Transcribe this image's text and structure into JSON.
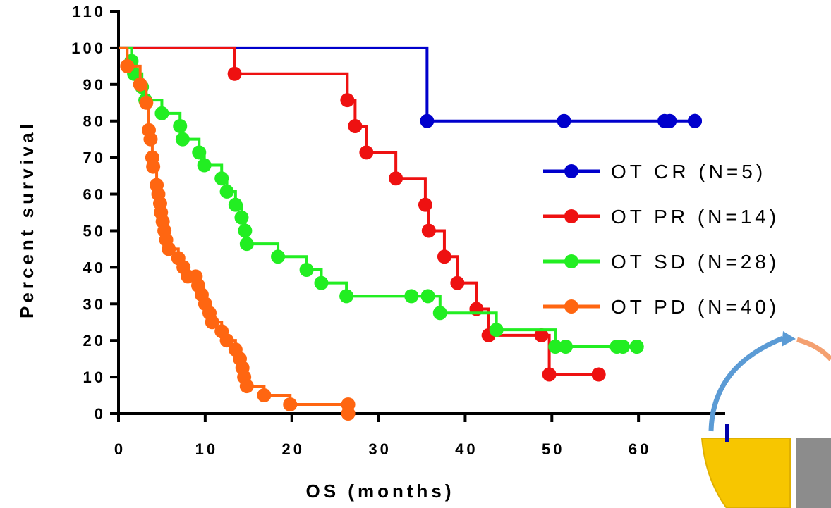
{
  "chart_data": {
    "type": "line",
    "title": "",
    "xlabel": "OS (months)",
    "ylabel": "Percent survival",
    "xlim": [
      0,
      70
    ],
    "ylim": [
      0,
      110
    ],
    "x_ticks": [
      0,
      10,
      20,
      30,
      40,
      50,
      60
    ],
    "y_ticks": [
      0,
      10,
      20,
      30,
      40,
      50,
      60,
      70,
      80,
      90,
      100,
      110
    ],
    "grid": false,
    "legend_position": "right",
    "series": [
      {
        "name": "OT CR (N=5)",
        "color": "#0000cc",
        "steps": [
          [
            0,
            100
          ],
          [
            35.6,
            80
          ],
          [
            66.5,
            80
          ]
        ],
        "censored": [
          [
            51.4,
            80
          ],
          [
            63.0,
            80
          ],
          [
            63.6,
            80
          ],
          [
            66.5,
            80
          ]
        ]
      },
      {
        "name": "OT PR (N=14)",
        "color": "#ee1111",
        "steps": [
          [
            0,
            100
          ],
          [
            13.4,
            92.9
          ],
          [
            26.4,
            85.7
          ],
          [
            27.3,
            78.6
          ],
          [
            28.6,
            71.4
          ],
          [
            32.0,
            64.3
          ],
          [
            35.4,
            57.1
          ],
          [
            35.8,
            50.0
          ],
          [
            37.6,
            42.9
          ],
          [
            39.1,
            35.7
          ],
          [
            41.3,
            28.6
          ],
          [
            42.7,
            21.4
          ],
          [
            49.7,
            10.7
          ],
          [
            55.4,
            10.7
          ]
        ],
        "censored": [
          [
            48.8,
            21.4
          ],
          [
            55.4,
            10.7
          ]
        ]
      },
      {
        "name": "OT SD (N=28)",
        "color": "#22ee22",
        "steps": [
          [
            0,
            100
          ],
          [
            1.5,
            96.4
          ],
          [
            1.8,
            92.9
          ],
          [
            2.7,
            89.3
          ],
          [
            3.1,
            85.7
          ],
          [
            5.0,
            82.1
          ],
          [
            7.1,
            78.6
          ],
          [
            7.4,
            75.0
          ],
          [
            9.3,
            71.4
          ],
          [
            9.9,
            67.9
          ],
          [
            11.9,
            64.3
          ],
          [
            12.5,
            60.7
          ],
          [
            13.5,
            57.1
          ],
          [
            14.2,
            53.6
          ],
          [
            14.6,
            50.0
          ],
          [
            14.8,
            46.4
          ],
          [
            18.4,
            42.9
          ],
          [
            21.7,
            39.3
          ],
          [
            23.4,
            35.7
          ],
          [
            26.3,
            32.1
          ],
          [
            37.1,
            27.5
          ],
          [
            43.6,
            22.9
          ],
          [
            50.4,
            18.3
          ],
          [
            59.8,
            18.3
          ]
        ],
        "censored": [
          [
            33.8,
            32.1
          ],
          [
            35.7,
            32.1
          ],
          [
            51.6,
            18.3
          ],
          [
            57.5,
            18.3
          ],
          [
            58.2,
            18.3
          ],
          [
            59.8,
            18.3
          ]
        ]
      },
      {
        "name": "OT PD (N=40)",
        "color": "#ff6611",
        "steps": [
          [
            0,
            100
          ],
          [
            1.0,
            95.0
          ],
          [
            2.5,
            90.0
          ],
          [
            3.2,
            85.0
          ],
          [
            3.5,
            77.5
          ],
          [
            3.7,
            75.0
          ],
          [
            3.9,
            70.0
          ],
          [
            4.0,
            67.5
          ],
          [
            4.4,
            62.5
          ],
          [
            4.6,
            60.0
          ],
          [
            4.8,
            57.5
          ],
          [
            4.9,
            55.0
          ],
          [
            5.1,
            52.5
          ],
          [
            5.3,
            50.0
          ],
          [
            5.5,
            47.5
          ],
          [
            5.8,
            45.0
          ],
          [
            6.9,
            42.5
          ],
          [
            7.5,
            40.0
          ],
          [
            8.0,
            37.5
          ],
          [
            9.2,
            35.0
          ],
          [
            9.6,
            32.5
          ],
          [
            10.0,
            30.0
          ],
          [
            10.5,
            27.5
          ],
          [
            10.8,
            25.0
          ],
          [
            11.9,
            22.5
          ],
          [
            12.5,
            20.0
          ],
          [
            13.5,
            17.5
          ],
          [
            14.0,
            15.0
          ],
          [
            14.3,
            12.5
          ],
          [
            14.5,
            10.0
          ],
          [
            14.8,
            7.5
          ],
          [
            16.8,
            5.0
          ],
          [
            19.8,
            2.5
          ],
          [
            26.5,
            2.5
          ]
        ],
        "censored": [
          [
            8.9,
            37.5
          ],
          [
            26.5,
            0
          ]
        ]
      }
    ]
  }
}
